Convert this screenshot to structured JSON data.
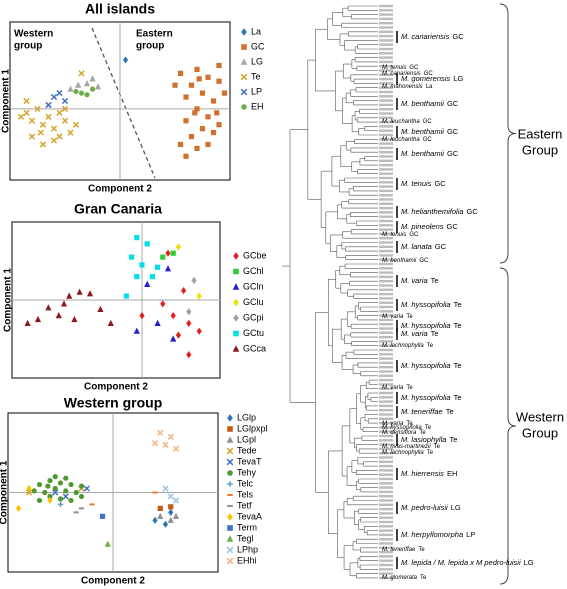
{
  "chart_data": [
    {
      "type": "scatter",
      "title": "All islands",
      "x_label": "Component 2",
      "y_label": "Component 1",
      "xlim": [
        -1,
        1
      ],
      "ylim": [
        -0.9,
        1.1
      ],
      "legend": "right",
      "annotations": [
        {
          "lines": [
            "Western",
            "group"
          ]
        },
        {
          "lines": [
            "Eastern",
            "group"
          ]
        }
      ],
      "series": [
        {
          "name": "La",
          "color": "#2e75b6",
          "marker": "diamond",
          "x": [
            0.05
          ],
          "values": [
            0.62
          ]
        },
        {
          "name": "GC",
          "color": "#d0702e",
          "marker": "square",
          "x": [
            0.55,
            0.7,
            0.8,
            0.65,
            0.9,
            0.75,
            0.6,
            0.85,
            0.95,
            0.7,
            0.8,
            0.6,
            0.9,
            0.75,
            0.65,
            0.85,
            0.55,
            0.7,
            0.8,
            0.6,
            0.9,
            0.5,
            0.72,
            0.88,
            0.68
          ],
          "values": [
            0.45,
            0.5,
            0.4,
            0.3,
            0.35,
            0.2,
            0.15,
            0.1,
            0.2,
            0.0,
            -0.1,
            -0.15,
            -0.2,
            -0.25,
            -0.35,
            -0.3,
            -0.45,
            -0.5,
            -0.45,
            -0.6,
            0.55,
            0.3,
            0.38,
            -0.05,
            -0.05
          ]
        },
        {
          "name": "LG",
          "color": "#a5a5a5",
          "marker": "triangle",
          "x": [
            -0.38,
            -0.3,
            -0.25,
            -0.45,
            -0.2
          ],
          "values": [
            0.3,
            0.32,
            0.38,
            0.25,
            0.28
          ]
        },
        {
          "name": "Te",
          "color": "#d4a52a",
          "marker": "x",
          "x": [
            -0.85,
            -0.8,
            -0.75,
            -0.7,
            -0.65,
            -0.6,
            -0.55,
            -0.5,
            -0.9,
            -0.72,
            -0.6,
            -0.45,
            -0.8,
            -0.65,
            -0.5,
            -0.4,
            -0.35,
            -0.85,
            -0.55,
            -0.7
          ],
          "values": [
            -0.05,
            -0.15,
            0.0,
            -0.2,
            -0.1,
            -0.25,
            -0.05,
            -0.15,
            -0.1,
            -0.3,
            -0.4,
            -0.3,
            -0.35,
            0.05,
            0.0,
            -0.2,
            0.45,
            0.1,
            -0.35,
            -0.45
          ]
        },
        {
          "name": "LP",
          "color": "#4472c4",
          "marker": "x",
          "x": [
            -0.55,
            -0.6,
            -0.5,
            -0.65
          ],
          "values": [
            0.2,
            0.15,
            0.1,
            0.05
          ]
        },
        {
          "name": "EH",
          "color": "#70ad47",
          "marker": "circle",
          "x": [
            -0.35,
            -0.3,
            -0.4,
            -0.25
          ],
          "values": [
            0.2,
            0.18,
            0.22,
            0.25
          ]
        }
      ]
    },
    {
      "type": "scatter",
      "title": "Gran Canaria",
      "x_label": "Component 2",
      "y_label": "Component 1",
      "xlim": [
        -1.25,
        0.75
      ],
      "ylim": [
        -1,
        1
      ],
      "legend": "right",
      "series": [
        {
          "name": "GCbe",
          "color": "#e0201e",
          "marker": "diamond",
          "x": [
            0.4,
            0.2,
            0.3,
            0.45,
            0.35,
            0.55,
            0.25,
            0.45,
            0.0
          ],
          "values": [
            0.12,
            -0.05,
            -0.2,
            -0.3,
            -0.45,
            -0.4,
            0.6,
            -0.7,
            -0.2
          ]
        },
        {
          "name": "GChl",
          "color": "#33cc33",
          "marker": "square",
          "x": [
            0.2,
            0.3
          ],
          "values": [
            0.55,
            0.6
          ]
        },
        {
          "name": "GCln",
          "color": "#1f1fcc",
          "marker": "triangle",
          "x": [
            0.05,
            0.25,
            -0.05,
            0.15,
            0.3
          ],
          "values": [
            0.2,
            0.4,
            -0.4,
            -0.3,
            -0.5
          ]
        },
        {
          "name": "GClu",
          "color": "#f0e000",
          "marker": "diamond",
          "x": [
            0.55,
            0.35
          ],
          "values": [
            0.05,
            0.68
          ]
        },
        {
          "name": "GCpi",
          "color": "#a0a0a0",
          "marker": "diamond",
          "x": [
            0.5,
            0.45
          ],
          "values": [
            0.25,
            -0.15
          ]
        },
        {
          "name": "GCtu",
          "color": "#00e0e8",
          "marker": "square",
          "x": [
            -0.05,
            0.05,
            -0.1,
            0.0,
            0.15,
            -0.05,
            0.1,
            -0.15
          ],
          "values": [
            0.8,
            0.72,
            0.55,
            0.45,
            0.42,
            0.3,
            0.3,
            0.05
          ]
        },
        {
          "name": "GCca",
          "color": "#8b1a1a",
          "marker": "triangle",
          "x": [
            -1.1,
            -0.9,
            -0.8,
            -0.7,
            -0.6,
            -0.5,
            -0.65,
            -0.4,
            -0.3,
            -1.0,
            -0.75
          ],
          "values": [
            -0.3,
            -0.1,
            -0.2,
            0.05,
            0.1,
            0.08,
            -0.25,
            -0.12,
            -0.3,
            -0.25,
            -0.05
          ]
        }
      ]
    },
    {
      "type": "scatter",
      "title": "Western group",
      "x_label": "Component 2",
      "y_label": "Component 1",
      "xlim": [
        -1,
        1
      ],
      "ylim": [
        -1,
        1
      ],
      "legend": "right",
      "series": [
        {
          "name": "LGlp",
          "color": "#2e75b6",
          "marker": "diamond",
          "x": [
            0.4,
            0.5,
            0.55
          ],
          "values": [
            -0.35,
            -0.4,
            -0.25
          ]
        },
        {
          "name": "LGlpxpl",
          "color": "#c55a11",
          "marker": "square",
          "x": [
            0.45,
            0.55
          ],
          "values": [
            -0.2,
            -0.18
          ]
        },
        {
          "name": "LGpl",
          "color": "#909090",
          "marker": "triangle",
          "x": [
            0.45,
            0.55,
            0.6
          ],
          "values": [
            -0.3,
            -0.35,
            -0.3
          ]
        },
        {
          "name": "Tede",
          "color": "#d4a52a",
          "marker": "x",
          "x": [
            -0.8,
            -0.3
          ],
          "values": [
            0.0,
            0.05
          ]
        },
        {
          "name": "TevaT",
          "color": "#4472c4",
          "marker": "x",
          "x": [
            -0.55,
            -0.45,
            -0.25
          ],
          "values": [
            0.0,
            -0.05,
            0.05
          ]
        },
        {
          "name": "Tehy",
          "color": "#4e9a2e",
          "marker": "circle",
          "x": [
            -0.7,
            -0.6,
            -0.5,
            -0.4,
            -0.65,
            -0.55,
            -0.45,
            -0.35,
            -0.6,
            -0.5,
            -0.7,
            -0.4,
            -0.55,
            -0.45,
            -0.3,
            -0.75,
            -0.3,
            -0.62
          ],
          "values": [
            0.1,
            0.15,
            0.12,
            0.1,
            0.0,
            0.05,
            0.02,
            0.0,
            -0.05,
            -0.08,
            -0.1,
            -0.1,
            0.2,
            0.18,
            0.08,
            0.02,
            -0.05,
            0.08
          ]
        },
        {
          "name": "Telc",
          "color": "#5b9bd5",
          "marker": "plus",
          "x": [
            -0.5
          ],
          "values": [
            -0.15
          ]
        },
        {
          "name": "Tels",
          "color": "#ed7d31",
          "marker": "dash",
          "x": [
            -0.2,
            0.4
          ],
          "values": [
            -0.15,
            0.0
          ]
        },
        {
          "name": "Tetf",
          "color": "#909090",
          "marker": "dash",
          "x": [
            -0.3,
            -0.35
          ],
          "values": [
            -0.2,
            -0.25
          ]
        },
        {
          "name": "TevaA",
          "color": "#ffc000",
          "marker": "diamond",
          "x": [
            -0.9,
            -0.6,
            -0.8
          ],
          "values": [
            -0.2,
            -0.1,
            0.05
          ]
        },
        {
          "name": "Term",
          "color": "#4472c4",
          "marker": "square",
          "x": [
            -0.1
          ],
          "values": [
            -0.3
          ]
        },
        {
          "name": "Tegl",
          "color": "#70ad47",
          "marker": "triangle",
          "x": [
            -0.05
          ],
          "values": [
            -0.65
          ]
        },
        {
          "name": "LPhp",
          "color": "#9dc3e6",
          "marker": "x",
          "x": [
            0.5,
            0.55,
            0.6
          ],
          "values": [
            0.05,
            -0.05,
            -0.1
          ]
        },
        {
          "name": "EHhi",
          "color": "#f4b183",
          "marker": "x",
          "x": [
            0.45,
            0.55,
            0.5,
            0.6,
            0.4
          ],
          "values": [
            0.75,
            0.7,
            0.6,
            0.55,
            0.62
          ]
        }
      ]
    }
  ],
  "tree": {
    "groups": [
      {
        "lines": [
          "Eastern",
          "Group"
        ]
      },
      {
        "lines": [
          "Western",
          "Group"
        ]
      }
    ],
    "clades": [
      {
        "species": "M. canariensis",
        "code": "GC"
      },
      {
        "species": "M. tenuis",
        "code": "GC"
      },
      {
        "species": "M. canariensis",
        "code": "GC"
      },
      {
        "species": "M. gomerensis",
        "code": "LG"
      },
      {
        "species": "M. mahonensis",
        "code": "La"
      },
      {
        "species": "M. benthamii",
        "code": "GC"
      },
      {
        "species": "M. leuchantha",
        "code": "GC"
      },
      {
        "species": "M. benthamii",
        "code": "GC"
      },
      {
        "species": "M. leuchantha",
        "code": "GC"
      },
      {
        "species": "M. benthamii",
        "code": "GC"
      },
      {
        "species": "M. tenuis",
        "code": "GC"
      },
      {
        "species": "M. helianthemifolia",
        "code": "GC"
      },
      {
        "species": "M. pineolens",
        "code": "GC"
      },
      {
        "species": "M. tenuis",
        "code": "GC"
      },
      {
        "species": "M. lanata",
        "code": "GC"
      },
      {
        "species": "M. benthamii",
        "code": "GC"
      },
      {
        "species": "M. varia",
        "code": "Te"
      },
      {
        "species": "M. hyssopifolia",
        "code": "Te"
      },
      {
        "species": "M. varia",
        "code": "Te"
      },
      {
        "species": "M. hyssopifolia",
        "code": "Te"
      },
      {
        "species": "M. varia",
        "code": "Te"
      },
      {
        "species": "M. lachnophylla",
        "code": "Te"
      },
      {
        "species": "M. hyssopifolia",
        "code": "Te"
      },
      {
        "species": "M. varia",
        "code": "Te"
      },
      {
        "species": "M. hyssopifolia",
        "code": "Te"
      },
      {
        "species": "M. teneriffae",
        "code": "Te"
      },
      {
        "species": "M. varia",
        "code": "Te"
      },
      {
        "species": "M. hyssopifolia",
        "code": "Te"
      },
      {
        "species": "M. densiflora",
        "code": "Te"
      },
      {
        "species": "M. lasiophylla",
        "code": "Te"
      },
      {
        "species": "M. rivas-martinezii",
        "code": "Te"
      },
      {
        "species": "M. lachnophylla",
        "code": "Te"
      },
      {
        "species": "M. hierrensis",
        "code": "EH"
      },
      {
        "species": "M. pedro-luisii",
        "code": "LG"
      },
      {
        "species": "M. herpyllomorpha",
        "code": "LP"
      },
      {
        "species": "M. teneriffae",
        "code": "Te"
      },
      {
        "species": "M. lepida / M. lepida x M pedro-luisii",
        "code": "LG"
      },
      {
        "species": "M. glomerata",
        "code": "Te"
      }
    ]
  }
}
